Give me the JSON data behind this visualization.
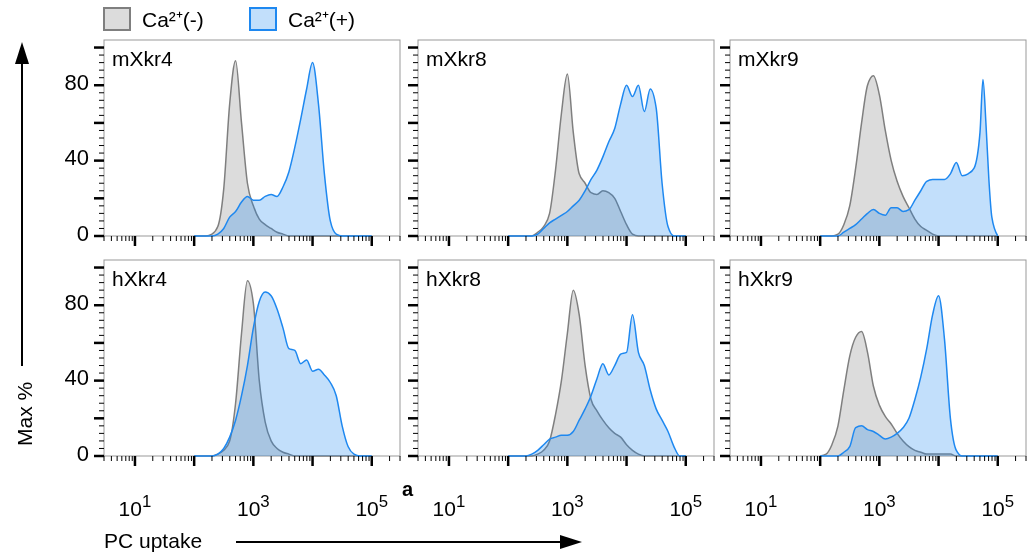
{
  "chart_data": [
    {
      "type": "area",
      "title": "mXkr4",
      "log": "x",
      "tick_labels": "y",
      "legend": "top left",
      "xlim": [
        3,
        300000
      ],
      "ylim": [
        0,
        104
      ],
      "xticks": [
        {
          "value": 10,
          "label": null
        },
        {
          "value": 100,
          "label": null
        },
        {
          "value": 1000,
          "label": null
        },
        {
          "value": 10000,
          "label": null
        },
        {
          "value": 100000,
          "label": null
        }
      ],
      "yticks": [
        0,
        {
          "value": 20,
          "label": null
        },
        40,
        {
          "value": 60,
          "label": null
        },
        80,
        {
          "value": 100,
          "label": null
        }
      ],
      "x": [
        100,
        126,
        158,
        200,
        251,
        316,
        398,
        501,
        631,
        794,
        1000,
        1259,
        1585,
        1995,
        2512,
        3162,
        3981,
        5012,
        6310,
        7943,
        10000,
        12589,
        15849,
        19953,
        25119,
        31623,
        39811,
        50119,
        63096,
        79433,
        100000
      ],
      "series": [
        {
          "name": "Ca²⁺(-)",
          "color": "#7f7f7f",
          "values": [
            0,
            0,
            0,
            1,
            5,
            25,
            70,
            93,
            60,
            28,
            16,
            9,
            6,
            4,
            2,
            1,
            0,
            0,
            0,
            0,
            0,
            0,
            0,
            0,
            0,
            0,
            0,
            0,
            0,
            0,
            0
          ]
        },
        {
          "name": "Ca²⁺(+)",
          "color": "#1e88f0",
          "values": [
            0,
            0,
            0,
            0,
            1,
            4,
            10,
            13,
            18,
            21,
            19,
            19,
            21,
            22,
            21,
            26,
            34,
            47,
            62,
            78,
            92,
            70,
            33,
            8,
            1,
            0,
            0,
            0,
            0,
            0,
            0
          ]
        }
      ]
    },
    {
      "type": "area",
      "title": "mXkr8",
      "log": "x",
      "tick_labels": false,
      "xlim": [
        3,
        300000
      ],
      "ylim": [
        0,
        104
      ],
      "xticks": [
        {
          "value": 10,
          "label": null
        },
        {
          "value": 100,
          "label": null
        },
        {
          "value": 1000,
          "label": null
        },
        {
          "value": 10000,
          "label": null
        },
        {
          "value": 100000,
          "label": null
        }
      ],
      "yticks": [
        0,
        {
          "value": 20,
          "label": null
        },
        40,
        {
          "value": 60,
          "label": null
        },
        80,
        {
          "value": 100,
          "label": null
        }
      ],
      "x": [
        100,
        126,
        158,
        200,
        251,
        316,
        398,
        501,
        631,
        794,
        1000,
        1259,
        1585,
        1995,
        2512,
        3162,
        3981,
        5012,
        6310,
        7943,
        10000,
        12589,
        15849,
        19953,
        25119,
        31623,
        39811,
        50119,
        63096,
        79433,
        100000
      ],
      "series": [
        {
          "color": "#7f7f7f",
          "values": [
            0,
            0,
            0,
            0,
            0,
            2,
            5,
            12,
            35,
            65,
            86,
            55,
            33,
            28,
            23,
            22,
            24,
            23,
            20,
            13,
            6,
            1,
            0,
            0,
            0,
            0,
            0,
            0,
            0,
            0,
            0
          ]
        },
        {
          "color": "#1e88f0",
          "values": [
            0,
            0,
            0,
            0,
            0,
            1,
            4,
            7,
            9,
            11,
            13,
            16,
            19,
            24,
            30,
            35,
            42,
            50,
            57,
            70,
            80,
            74,
            80,
            66,
            78,
            68,
            28,
            5,
            0,
            0,
            0
          ]
        }
      ]
    },
    {
      "type": "area",
      "title": "mXkr9",
      "log": "x",
      "tick_labels": false,
      "xlim": [
        3,
        300000
      ],
      "ylim": [
        0,
        104
      ],
      "xticks": [
        {
          "value": 10,
          "label": null
        },
        {
          "value": 100,
          "label": null
        },
        {
          "value": 1000,
          "label": null
        },
        {
          "value": 10000,
          "label": null
        },
        {
          "value": 100000,
          "label": null
        }
      ],
      "yticks": [
        0,
        {
          "value": 20,
          "label": null
        },
        40,
        {
          "value": 60,
          "label": null
        },
        80,
        {
          "value": 100,
          "label": null
        }
      ],
      "x": [
        100,
        126,
        158,
        200,
        251,
        316,
        398,
        501,
        631,
        794,
        1000,
        1259,
        1585,
        1995,
        2512,
        3162,
        3981,
        5012,
        6310,
        7943,
        10000,
        12589,
        15849,
        19953,
        25119,
        31623,
        39811,
        50119,
        56234,
        63096,
        70795,
        79433,
        100000
      ],
      "series": [
        {
          "color": "#7f7f7f",
          "values": [
            0,
            0,
            0,
            1,
            6,
            16,
            36,
            60,
            80,
            85,
            75,
            56,
            40,
            29,
            21,
            15,
            9,
            5,
            3,
            1,
            0,
            0,
            0,
            0,
            0,
            0,
            0,
            0,
            0,
            0,
            0,
            0,
            0
          ]
        },
        {
          "color": "#1e88f0",
          "values": [
            0,
            0,
            0,
            0,
            2,
            4,
            6,
            9,
            12,
            14,
            12,
            11,
            15,
            15,
            13,
            14,
            19,
            24,
            29,
            30,
            30,
            30,
            33,
            39,
            32,
            33,
            36,
            55,
            83,
            60,
            30,
            10,
            0
          ]
        }
      ]
    },
    {
      "type": "area",
      "title": "hXkr4",
      "log": "x",
      "xlabel": "PC uptake",
      "ylabel": "Max %",
      "annotations": [
        "a"
      ],
      "xlim": [
        3,
        300000
      ],
      "ylim": [
        0,
        104
      ],
      "xticks": [
        {
          "value": 10,
          "label": "10$^{1}$"
        },
        {
          "value": 100,
          "label": null
        },
        {
          "value": 1000,
          "label": "10$^{3}$"
        },
        {
          "value": 10000,
          "label": null
        },
        {
          "value": 100000,
          "label": "10$^{5}$"
        }
      ],
      "yticks": [
        0,
        {
          "value": 20,
          "label": null
        },
        40,
        {
          "value": 60,
          "label": null
        },
        80,
        {
          "value": 100,
          "label": null
        }
      ],
      "x": [
        100,
        126,
        158,
        200,
        251,
        316,
        398,
        501,
        631,
        794,
        1000,
        1259,
        1585,
        1995,
        2512,
        3162,
        3981,
        5012,
        6310,
        7943,
        10000,
        12589,
        15849,
        19953,
        25119,
        31623,
        39811,
        50119,
        63096,
        79433,
        100000
      ],
      "series": [
        {
          "color": "#7f7f7f",
          "values": [
            0,
            0,
            0,
            0,
            1,
            3,
            8,
            28,
            65,
            93,
            81,
            40,
            18,
            8,
            4,
            2,
            1,
            0,
            0,
            0,
            0,
            0,
            0,
            0,
            0,
            0,
            0,
            0,
            0,
            0,
            0
          ]
        },
        {
          "color": "#1e88f0",
          "values": [
            0,
            0,
            0,
            0,
            1,
            4,
            10,
            19,
            32,
            48,
            68,
            82,
            87,
            85,
            78,
            68,
            57,
            56,
            49,
            51,
            45,
            46,
            43,
            39,
            32,
            16,
            5,
            1,
            0,
            0,
            0
          ]
        }
      ]
    },
    {
      "type": "area",
      "title": "hXkr8",
      "log": "x",
      "tick_labels": "x",
      "xlim": [
        3,
        300000
      ],
      "ylim": [
        0,
        104
      ],
      "xticks": [
        {
          "value": 10,
          "label": "10$^{1}$"
        },
        {
          "value": 100,
          "label": null
        },
        {
          "value": 1000,
          "label": "10$^{3}$"
        },
        {
          "value": 10000,
          "label": null
        },
        {
          "value": 100000,
          "label": "10$^{5}$"
        }
      ],
      "yticks": [
        0,
        {
          "value": 20,
          "label": null
        },
        40,
        {
          "value": 60,
          "label": null
        },
        80,
        {
          "value": 100,
          "label": null
        }
      ],
      "x": [
        100,
        126,
        158,
        200,
        251,
        316,
        398,
        501,
        631,
        794,
        1000,
        1259,
        1585,
        1995,
        2512,
        3162,
        3981,
        5012,
        6310,
        7943,
        10000,
        12589,
        15849,
        19953,
        25119,
        31623,
        39811,
        50119,
        63096,
        79433,
        100000
      ],
      "series": [
        {
          "color": "#7f7f7f",
          "values": [
            0,
            0,
            0,
            0,
            0,
            1,
            3,
            8,
            22,
            40,
            65,
            88,
            75,
            48,
            30,
            24,
            19,
            15,
            12,
            10,
            6,
            3,
            1,
            0,
            0,
            0,
            0,
            0,
            0,
            0,
            0
          ]
        },
        {
          "color": "#1e88f0",
          "values": [
            0,
            0,
            0,
            0,
            1,
            3,
            6,
            9,
            10,
            11,
            11,
            13,
            19,
            25,
            32,
            41,
            49,
            43,
            48,
            54,
            55,
            75,
            55,
            48,
            35,
            25,
            19,
            13,
            5,
            0,
            0
          ]
        }
      ]
    },
    {
      "type": "area",
      "title": "hXkr9",
      "log": "x",
      "tick_labels": "x",
      "xlim": [
        3,
        300000
      ],
      "ylim": [
        0,
        104
      ],
      "xticks": [
        {
          "value": 10,
          "label": "10$^{1}$"
        },
        {
          "value": 100,
          "label": null
        },
        {
          "value": 1000,
          "label": "10$^{3}$"
        },
        {
          "value": 10000,
          "label": null
        },
        {
          "value": 100000,
          "label": "10$^{5}$"
        }
      ],
      "yticks": [
        0,
        {
          "value": 20,
          "label": null
        },
        40,
        {
          "value": 60,
          "label": null
        },
        80,
        {
          "value": 100,
          "label": null
        }
      ],
      "x": [
        100,
        126,
        158,
        200,
        251,
        316,
        398,
        501,
        631,
        794,
        1000,
        1259,
        1585,
        1995,
        2512,
        3162,
        3981,
        5012,
        6310,
        7943,
        10000,
        12589,
        15849,
        19953,
        25119,
        31623,
        39811,
        50119,
        63096,
        79433,
        100000
      ],
      "series": [
        {
          "color": "#7f7f7f",
          "values": [
            0,
            1,
            6,
            16,
            35,
            53,
            63,
            66,
            55,
            37,
            27,
            21,
            17,
            12,
            8,
            5,
            3,
            2,
            1,
            1,
            1,
            1,
            1,
            0,
            0,
            0,
            0,
            0,
            0,
            0,
            0
          ]
        },
        {
          "color": "#1e88f0",
          "values": [
            0,
            0,
            0,
            0,
            2,
            5,
            15,
            16,
            14,
            13,
            11,
            9,
            10,
            12,
            15,
            20,
            30,
            42,
            57,
            75,
            85,
            62,
            20,
            3,
            0,
            0,
            0,
            0,
            0,
            0,
            0
          ]
        }
      ]
    }
  ]
}
